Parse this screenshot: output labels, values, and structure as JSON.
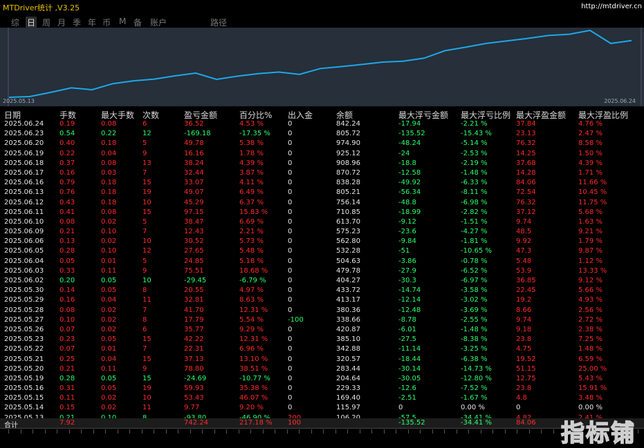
{
  "app": {
    "title": "MTDriver统计 ,V3.25",
    "link": "http://mtdriver.cn"
  },
  "tabs": [
    {
      "label": "综",
      "active": false
    },
    {
      "label": "日",
      "active": true
    },
    {
      "label": "周",
      "active": false
    },
    {
      "label": "月",
      "active": false
    },
    {
      "label": "季",
      "active": false
    },
    {
      "label": "年",
      "active": false
    },
    {
      "label": "币",
      "active": false
    },
    {
      "label": "M",
      "active": false
    },
    {
      "label": "备",
      "active": false
    },
    {
      "label": "账户",
      "active": false
    },
    {
      "label": "路径",
      "active": false
    }
  ],
  "chart": {
    "start_label": "2025.05.13",
    "end_label": "2025.06.24",
    "line_color": "#1ea8e8",
    "background": "#262f3a"
  },
  "chart_data": {
    "type": "line",
    "x": [
      "2025.05.13",
      "2025.05.14",
      "2025.05.15",
      "2025.05.16",
      "2025.05.19",
      "2025.05.20",
      "2025.05.21",
      "2025.05.22",
      "2025.05.23",
      "2025.05.26",
      "2025.05.27",
      "2025.05.28",
      "2025.05.29",
      "2025.05.30",
      "2025.06.02",
      "2025.06.03",
      "2025.06.04",
      "2025.06.05",
      "2025.06.06",
      "2025.06.09",
      "2025.06.10",
      "2025.06.11",
      "2025.06.12",
      "2025.06.13",
      "2025.06.16",
      "2025.06.17",
      "2025.06.18",
      "2025.06.19",
      "2025.06.20",
      "2025.06.23",
      "2025.06.24"
    ],
    "values": [
      106.2,
      115.97,
      169.4,
      229.33,
      204.64,
      283.44,
      320.57,
      342.88,
      385.1,
      420.87,
      338.66,
      380.36,
      413.17,
      433.72,
      404.27,
      479.78,
      504.63,
      532.28,
      562.8,
      575.23,
      613.7,
      710.85,
      756.14,
      805.21,
      838.28,
      870.72,
      908.96,
      925.12,
      974.9,
      805.72,
      842.24
    ],
    "series_name": "余额"
  },
  "table": {
    "columns": [
      "日期",
      "手数",
      "最大手数",
      "次数",
      "盈亏金额",
      "百分比%",
      "出入金",
      "余额",
      "最大浮亏金额",
      "最大浮亏比例",
      "最大浮盈金额",
      "最大浮盈比例"
    ],
    "rows": [
      [
        "2025.06.24",
        "0.19",
        "0.08",
        "6",
        "36.52",
        "4.53 %",
        "0",
        "842.24",
        "-17.94",
        "-2.21 %",
        "37.84",
        "4.76 %"
      ],
      [
        "2025.06.23",
        "0.54",
        "0.22",
        "12",
        "-169.18",
        "-17.35 %",
        "0",
        "805.72",
        "-135.52",
        "-15.43 %",
        "23.13",
        "2.47 %"
      ],
      [
        "2025.06.20",
        "0.40",
        "0.18",
        "5",
        "49.78",
        "5.38 %",
        "0",
        "974.90",
        "-48.24",
        "-5.14 %",
        "76.32",
        "8.58 %"
      ],
      [
        "2025.06.19",
        "0.22",
        "0.04",
        "9",
        "16.16",
        "1.78 %",
        "0",
        "925.12",
        "-24",
        "-2.53 %",
        "14.25",
        "1.50 %"
      ],
      [
        "2025.06.18",
        "0.37",
        "0.08",
        "13",
        "38.24",
        "4.39 %",
        "0",
        "908.96",
        "-18.8",
        "-2.19 %",
        "37.68",
        "4.39 %"
      ],
      [
        "2025.06.17",
        "0.16",
        "0.03",
        "7",
        "32.44",
        "3.87 %",
        "0",
        "870.72",
        "-12.58",
        "-1.48 %",
        "14.28",
        "1.71 %"
      ],
      [
        "2025.06.16",
        "0.79",
        "0.18",
        "15",
        "33.07",
        "4.11 %",
        "0",
        "838.28",
        "-49.92",
        "-6.33 %",
        "84.06",
        "11.66 %"
      ],
      [
        "2025.06.13",
        "0.76",
        "0.18",
        "19",
        "49.07",
        "6.49 %",
        "0",
        "805.21",
        "-56.34",
        "-8.11 %",
        "72.54",
        "10.45 %"
      ],
      [
        "2025.06.12",
        "0.43",
        "0.18",
        "10",
        "45.29",
        "6.37 %",
        "0",
        "756.14",
        "-48.8",
        "-6.98 %",
        "76.32",
        "11.75 %"
      ],
      [
        "2025.06.11",
        "0.41",
        "0.08",
        "15",
        "97.15",
        "15.83 %",
        "0",
        "710.85",
        "-18.99",
        "-2.82 %",
        "37.12",
        "5.68 %"
      ],
      [
        "2025.06.10",
        "0.08",
        "0.02",
        "5",
        "38.47",
        "6.69 %",
        "0",
        "613.70",
        "-9.12",
        "-1.51 %",
        "9.74",
        "1.63 %"
      ],
      [
        "2025.06.09",
        "0.21",
        "0.10",
        "7",
        "12.43",
        "2.21 %",
        "0",
        "575.23",
        "-23.6",
        "-4.27 %",
        "48.5",
        "9.21 %"
      ],
      [
        "2025.06.06",
        "0.13",
        "0.02",
        "10",
        "30.52",
        "5.73 %",
        "0",
        "562.80",
        "-9.84",
        "-1.81 %",
        "9.92",
        "1.79 %"
      ],
      [
        "2025.06.05",
        "0.28",
        "0.10",
        "12",
        "27.65",
        "5.48 %",
        "0",
        "532.28",
        "-51",
        "-10.65 %",
        "47.3",
        "9.87 %"
      ],
      [
        "2025.06.04",
        "0.05",
        "0.01",
        "5",
        "24.85",
        "5.18 %",
        "0",
        "504.63",
        "-3.86",
        "-0.78 %",
        "5.48",
        "1.12 %"
      ],
      [
        "2025.06.03",
        "0.33",
        "0.11",
        "9",
        "75.51",
        "18.68 %",
        "0",
        "479.78",
        "-27.9",
        "-6.52 %",
        "53.9",
        "13.33 %"
      ],
      [
        "2025.06.02",
        "0.20",
        "0.05",
        "10",
        "-29.45",
        "-6.79 %",
        "0",
        "404.27",
        "-30.3",
        "-6.97 %",
        "36.85",
        "9.12 %"
      ],
      [
        "2025.05.30",
        "0.14",
        "0.05",
        "8",
        "20.55",
        "4.97 %",
        "0",
        "433.72",
        "-14.74",
        "-3.58 %",
        "22.45",
        "5.66 %"
      ],
      [
        "2025.05.29",
        "0.16",
        "0.04",
        "11",
        "32.81",
        "8.63 %",
        "0",
        "413.17",
        "-12.14",
        "-3.02 %",
        "19.2",
        "4.93 %"
      ],
      [
        "2025.05.28",
        "0.08",
        "0.02",
        "7",
        "41.70",
        "12.31 %",
        "0",
        "380.36",
        "-12.48",
        "-3.69 %",
        "8.66",
        "2.56 %"
      ],
      [
        "2025.05.27",
        "0.10",
        "0.02",
        "8",
        "17.79",
        "5.54 %",
        "-100",
        "338.66",
        "-8.78",
        "-2.55 %",
        "9.74",
        "2.72 %"
      ],
      [
        "2025.05.26",
        "0.07",
        "0.02",
        "6",
        "35.77",
        "9.29 %",
        "0",
        "420.87",
        "-6.01",
        "-1.48 %",
        "9.18",
        "2.38 %"
      ],
      [
        "2025.05.23",
        "0.23",
        "0.05",
        "15",
        "42.22",
        "12.31 %",
        "0",
        "385.10",
        "-27.5",
        "-8.38 %",
        "23.8",
        "7.25 %"
      ],
      [
        "2025.05.22",
        "0.07",
        "0.01",
        "7",
        "22.31",
        "6.96 %",
        "0",
        "342.88",
        "-11.14",
        "-3.25 %",
        "4.75",
        "1.48 %"
      ],
      [
        "2025.05.21",
        "0.25",
        "0.04",
        "15",
        "37.13",
        "13.10 %",
        "0",
        "320.57",
        "-18.44",
        "-6.38 %",
        "19.52",
        "6.59 %"
      ],
      [
        "2025.05.20",
        "0.21",
        "0.11",
        "9",
        "78.80",
        "38.51 %",
        "0",
        "283.44",
        "-30.14",
        "-14.73 %",
        "51.15",
        "25.00 %"
      ],
      [
        "2025.05.19",
        "0.28",
        "0.05",
        "15",
        "-24.69",
        "-10.77 %",
        "0",
        "204.64",
        "-30.05",
        "-12.80 %",
        "12.75",
        "5.43 %"
      ],
      [
        "2025.05.16",
        "0.31",
        "0.05",
        "19",
        "59.93",
        "35.38 %",
        "0",
        "229.33",
        "-12.6",
        "-7.52 %",
        "23.8",
        "15.91 %"
      ],
      [
        "2025.05.15",
        "0.11",
        "0.02",
        "10",
        "53.43",
        "46.07 %",
        "0",
        "169.40",
        "-2.51",
        "-1.67 %",
        "4.8",
        "3.48 %"
      ],
      [
        "2025.05.14",
        "0.15",
        "0.02",
        "11",
        "9.77",
        "9.20 %",
        "0",
        "115.97",
        "0",
        "0.00 %",
        "0",
        "0.00 %"
      ],
      [
        "2025.05.13",
        "0.21",
        "0.10",
        "8",
        "-93.80",
        "-46.90 %",
        "200",
        "106.20",
        "-57.5",
        "-34.41 %",
        "4.82",
        "2.41 %"
      ]
    ],
    "total": [
      "合计",
      "7.92",
      "",
      "",
      "742.24",
      "217.18 %",
      "100",
      "",
      "-135.52",
      "-34.41 %",
      "84.06",
      ""
    ]
  },
  "watermark": "指标铺",
  "colors": {
    "positive": "#ff2a2a",
    "negative": "#2aff6a",
    "neutral": "#e6e6e6",
    "title": "#e8c200"
  }
}
